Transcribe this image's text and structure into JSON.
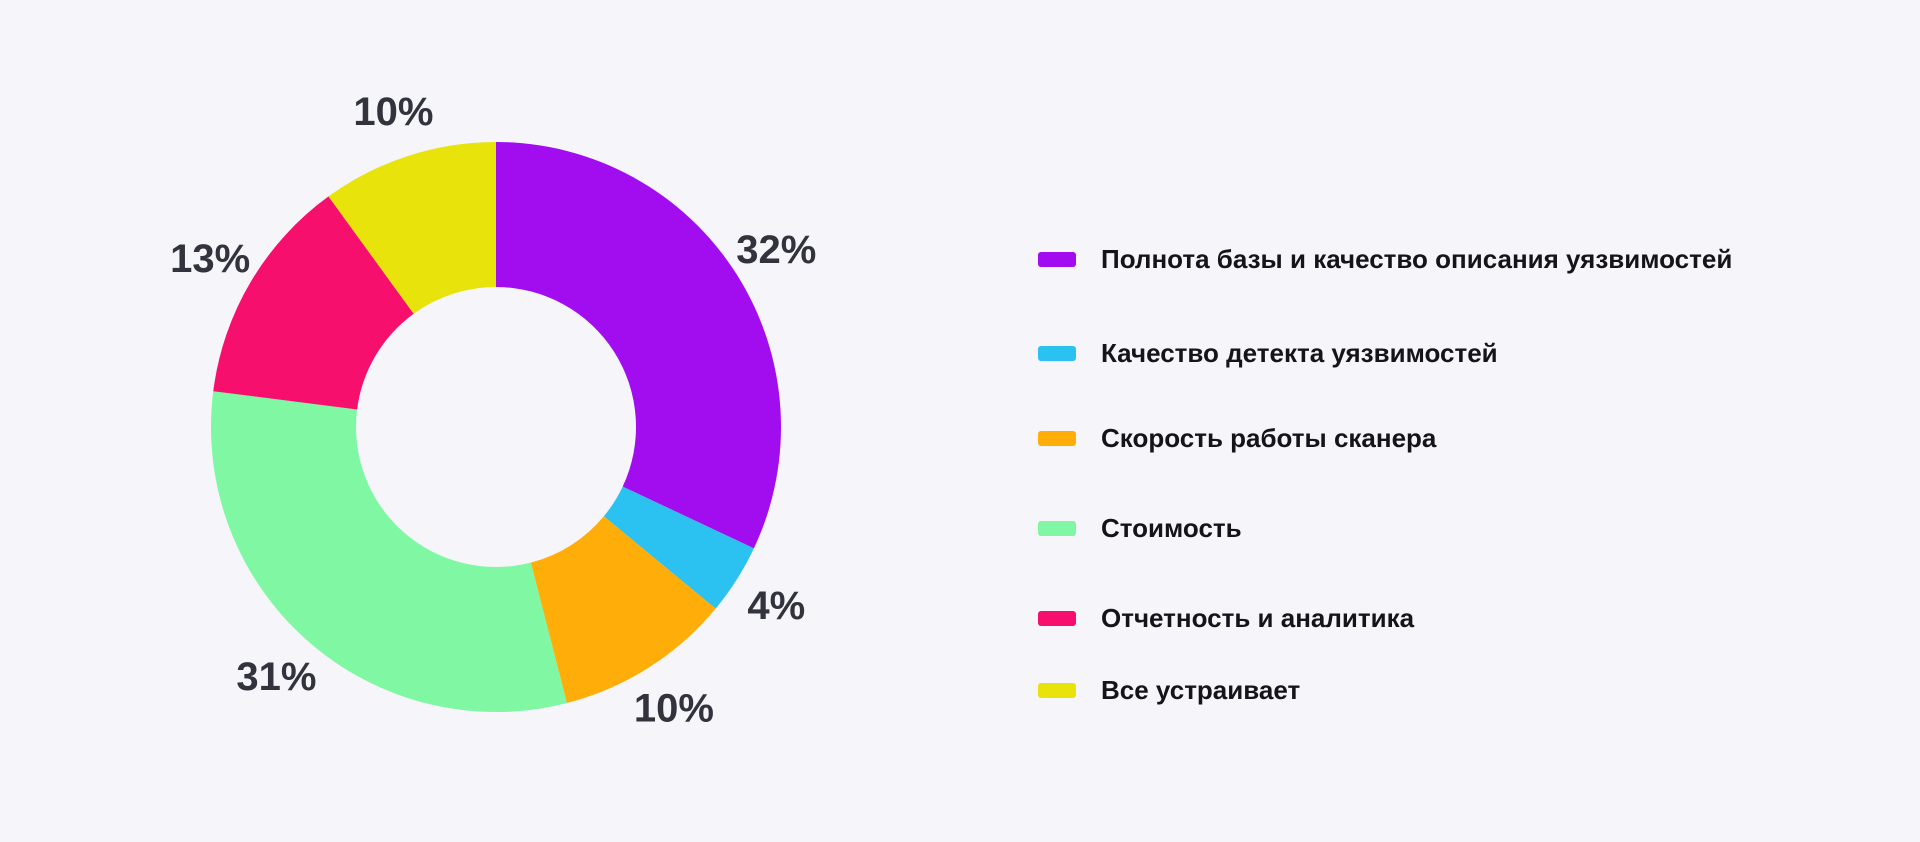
{
  "background_color": "#F5F5FA",
  "chart_data": {
    "type": "pie",
    "subtype": "donut",
    "title": "",
    "start_angle": "12-o-clock",
    "direction": "clockwise",
    "value_labels": "outside",
    "value_label_suffix": "%",
    "value_label_color": "#32333C",
    "legend_position": "right",
    "legend_text_color": "#141419",
    "slices": [
      {
        "label": "Полнота базы и качество описания уязвимостей",
        "value": 32,
        "display_value": "32%",
        "color": "#A20DF0"
      },
      {
        "label": "Качество детекта уязвимостей",
        "value": 4,
        "display_value": "4%",
        "color": "#2BC1F0"
      },
      {
        "label": "Скорость работы сканера",
        "value": 10,
        "display_value": "10%",
        "color": "#FFAD08"
      },
      {
        "label": "Стоимость",
        "value": 31,
        "display_value": "31%",
        "color": "#7FF7A3"
      },
      {
        "label": "Отчетность и аналитика",
        "value": 13,
        "display_value": "13%",
        "color": "#F70F6E"
      },
      {
        "label": "Все устраивает",
        "value": 10,
        "display_value": "10%",
        "color": "#E8E30A"
      }
    ]
  }
}
